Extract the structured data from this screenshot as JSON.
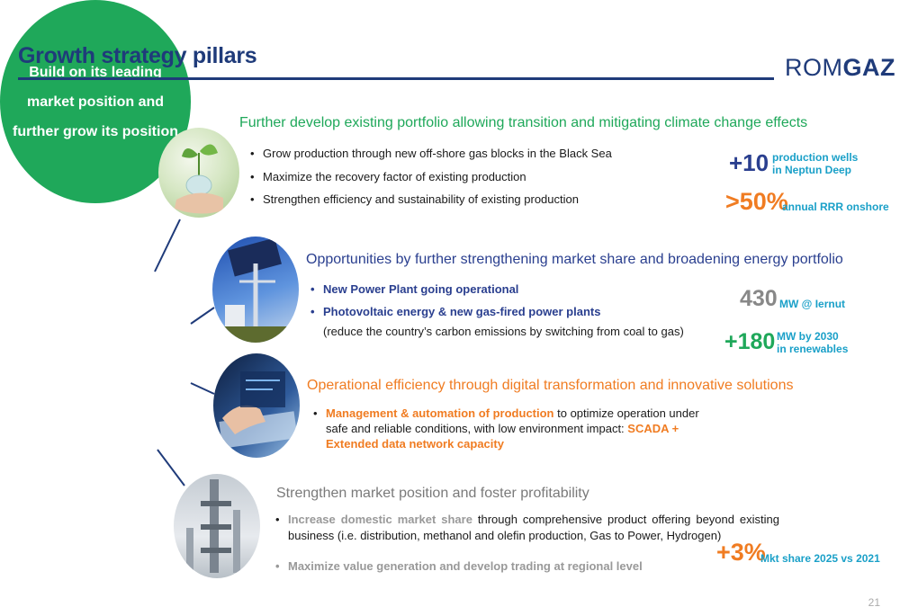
{
  "header": {
    "title": "Growth strategy pillars",
    "logo_light": "ROM",
    "logo_bold": "GAZ",
    "page_number": "21"
  },
  "center": {
    "text_lines": [
      "Build on its leading",
      "market position and",
      "further grow its position"
    ]
  },
  "colors": {
    "navy": "#1f3b7a",
    "green": "#1fa85a",
    "blue": "#2a3f8f",
    "orange": "#f07c22",
    "teal": "#1aa0c8",
    "gray": "#888888"
  },
  "icons": [
    "plant-in-hand-photo",
    "solar-panel-tower-photo",
    "digital-hand-photo",
    "industrial-plant-photo"
  ],
  "section1": {
    "heading": "Further develop existing portfolio allowing transition and mitigating climate change effects",
    "bullets": [
      "Grow production through new off-shore gas blocks in the Black Sea",
      "Maximize the recovery factor of existing production",
      "Strengthen efficiency and sustainability of existing production"
    ],
    "kpi1": {
      "value": "+10",
      "label_line1": "production wells",
      "label_line2": "in Neptun Deep"
    },
    "kpi2": {
      "value": ">50%",
      "label": "annual RRR onshore"
    }
  },
  "section2": {
    "heading": "Opportunities by further strengthening market share and broadening energy portfolio",
    "bullets": [
      "New Power Plant going operational",
      "Photovoltaic energy & new gas-fired power plants"
    ],
    "note": "(reduce the country’s carbon emissions by switching from coal to gas)",
    "kpi1": {
      "value": "430",
      "label": "MW @ Iernut"
    },
    "kpi2": {
      "value": "+180",
      "label_line1": "MW by 2030",
      "label_line2": "in renewables"
    }
  },
  "section3": {
    "heading": "Operational efficiency through digital transformation and innovative solutions",
    "bullet_highlight": "Management & automation of production",
    "bullet_text": " to optimize operation under safe and reliable conditions, with low environment impact: ",
    "bullet_highlight2": "SCADA + Extended data network capacity"
  },
  "section4": {
    "heading": "Strengthen market position and foster profitability",
    "bullet1_highlight": "Increase domestic market share",
    "bullet1_text": " through comprehensive product offering beyond existing business (i.e. distribution, methanol and olefin production, Gas to Power, Hydrogen)",
    "bullet2": "Maximize value generation and develop trading at regional level",
    "kpi": {
      "value": "+3%",
      "label": "Mkt share 2025 vs 2021"
    }
  }
}
